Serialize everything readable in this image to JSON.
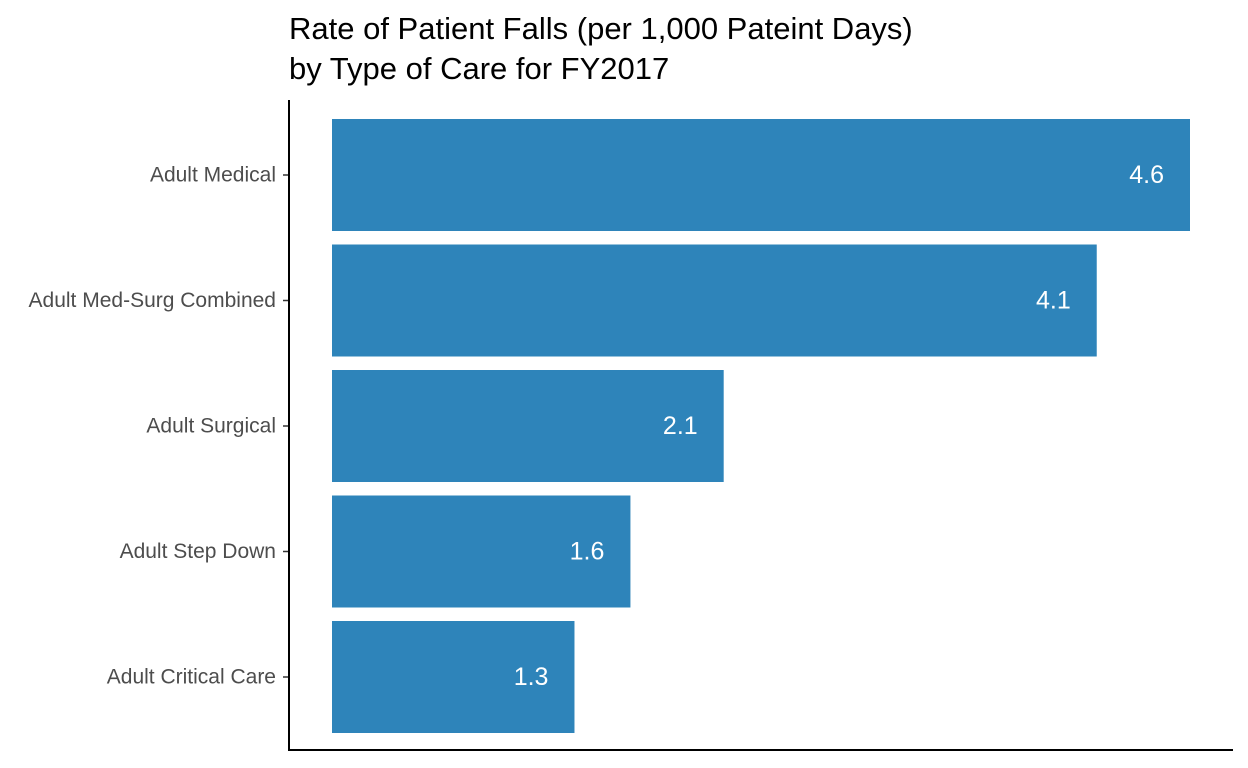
{
  "chart_data": {
    "type": "bar",
    "orientation": "horizontal",
    "title_lines": [
      "Rate of Patient Falls (per 1,000 Pateint Days)",
      "by Type of Care for FY2017"
    ],
    "categories": [
      "Adult Medical",
      "Adult Med-Surg Combined",
      "Adult Surgical",
      "Adult Step Down",
      "Adult Critical Care"
    ],
    "values": [
      4.6,
      4.1,
      2.1,
      1.6,
      1.3
    ],
    "data_labels": [
      "4.6",
      "4.1",
      "2.1",
      "1.6",
      "1.3"
    ],
    "xlabel": "",
    "ylabel": "",
    "xlim": [
      0,
      4.6
    ],
    "bar_color": "#2E84BA",
    "grid": false,
    "legend": "none"
  }
}
